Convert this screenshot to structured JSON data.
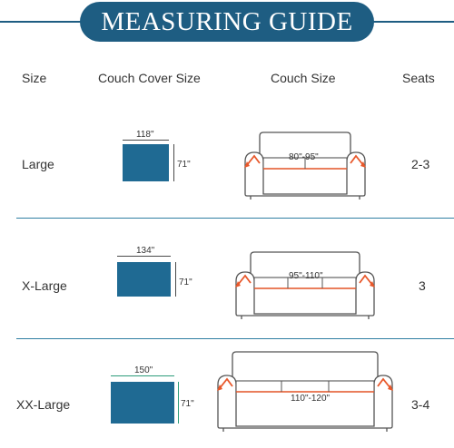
{
  "title": "MEASURING GUIDE",
  "headers": {
    "size": "Size",
    "cover": "Couch Cover Size",
    "couch": "Couch Size",
    "seats": "Seats"
  },
  "rows": [
    {
      "size": "Large",
      "cover_width": "118\"",
      "cover_height": "71\"",
      "couch_size": "80\"-95\"",
      "seats": "2-3"
    },
    {
      "size": "X-Large",
      "cover_width": "134\"",
      "cover_height": "71\"",
      "couch_size": "95\"-110\"",
      "seats": "3"
    },
    {
      "size": "XX-Large",
      "cover_width": "150\"",
      "cover_height": "71\"",
      "couch_size": "110\"-120\"",
      "seats": "3-4"
    }
  ],
  "colors": {
    "banner": "#1e5d82",
    "cover": "#1f6a93",
    "arrow": "#e8582b"
  }
}
